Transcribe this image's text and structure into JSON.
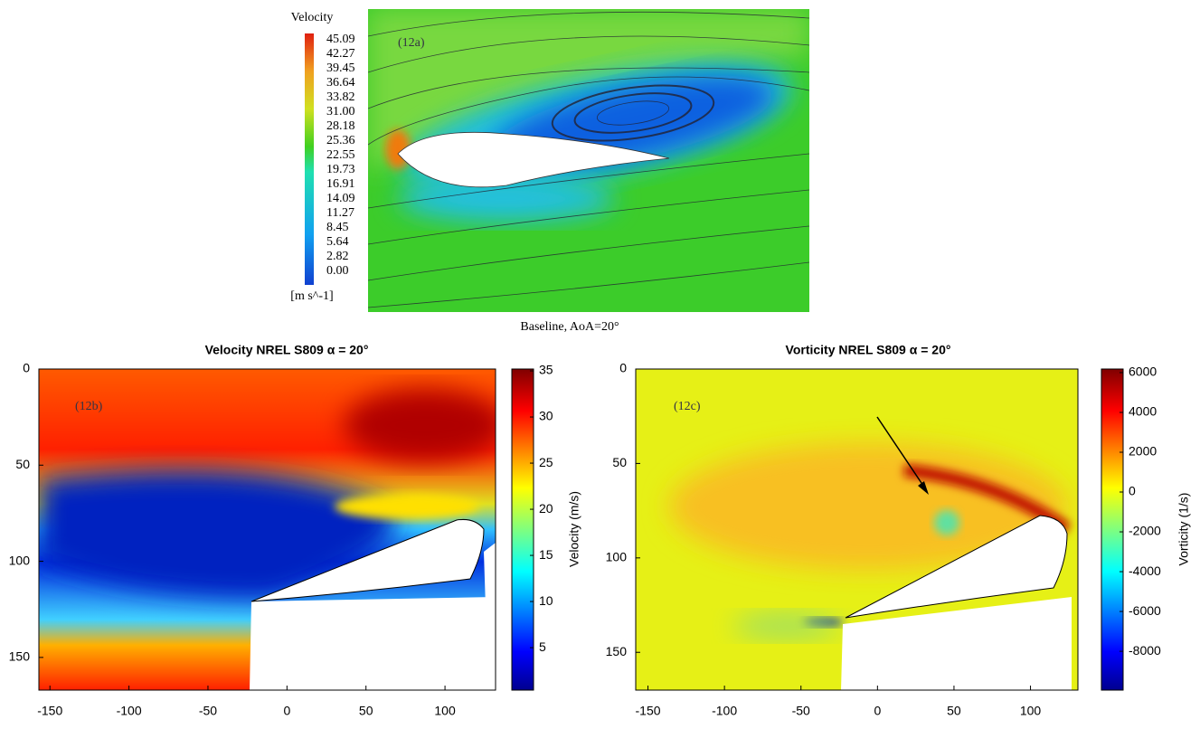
{
  "panel_a": {
    "label": "(12a)",
    "colorbar_title": "Velocity",
    "colorbar_ticks": [
      "45.09",
      "42.27",
      "39.45",
      "36.64",
      "33.82",
      "31.00",
      "28.18",
      "25.36",
      "22.55",
      "19.73",
      "16.91",
      "14.09",
      "11.27",
      "8.45",
      "5.64",
      "2.82",
      "0.00"
    ],
    "colorbar_unit": "[m s^-1]",
    "caption": "Baseline, AoA=20°"
  },
  "panel_b": {
    "label": "(12b)",
    "title": "Velocity NREL S809 α = 20°",
    "xlim": [
      -157,
      132
    ],
    "ylim": [
      0,
      167
    ],
    "xticks": [
      -150,
      -100,
      -50,
      0,
      50,
      100
    ],
    "yticks": [
      0,
      50,
      100,
      150
    ],
    "colorbar_lim": [
      0.4,
      35.2
    ],
    "colorbar_ticks": [
      5,
      10,
      15,
      20,
      25,
      30,
      35
    ],
    "colorbar_label": "Velocity (m/s)"
  },
  "panel_c": {
    "label": "(12c)",
    "title": "Vorticity NREL S809 α = 20°",
    "xlim": [
      -158,
      131
    ],
    "ylim": [
      0,
      170
    ],
    "xticks": [
      -150,
      -100,
      -50,
      0,
      50,
      100
    ],
    "yticks": [
      0,
      50,
      100,
      150
    ],
    "colorbar_lim": [
      -9950,
      6180
    ],
    "colorbar_ticks": [
      -8000,
      -6000,
      -4000,
      -2000,
      0,
      2000,
      4000,
      6000
    ],
    "colorbar_label": "Vorticity (1/s)"
  }
}
